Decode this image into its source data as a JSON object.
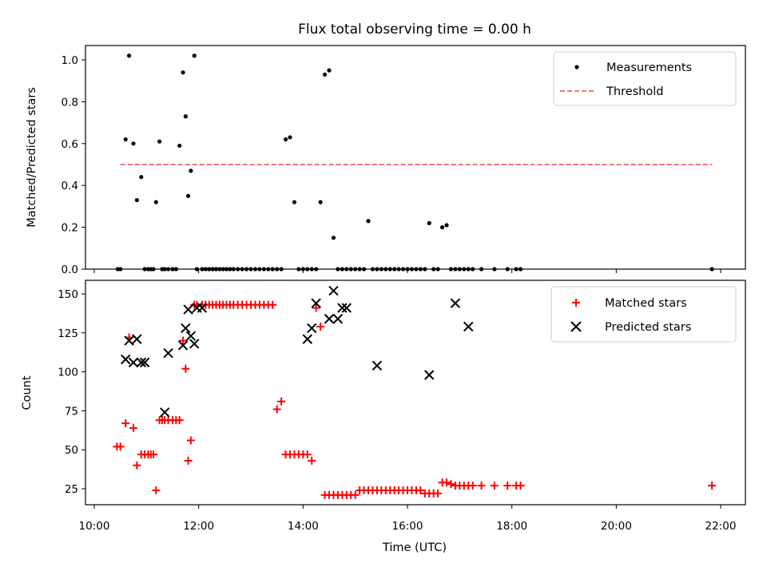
{
  "chart_data": [
    {
      "type": "scatter",
      "title": "Flux total observing time = 0.00 h",
      "xlabel": "",
      "ylabel": "Matched/Predicted stars",
      "xlim": [
        "10:00",
        "22:00"
      ],
      "ylim": [
        0,
        1.08
      ],
      "yticks": [
        "0.0",
        "0.2",
        "0.4",
        "0.6",
        "0.8",
        "1.0"
      ],
      "legend_position": "top-right",
      "grid": false,
      "series": [
        {
          "name": "Measurements",
          "marker": "dot",
          "color": "#000000",
          "x": [
            "10:27",
            "10:30",
            "10:36",
            "10:40",
            "10:45",
            "10:49",
            "10:54",
            "10:58",
            "11:02",
            "11:05",
            "11:08",
            "11:11",
            "11:15",
            "11:18",
            "11:21",
            "11:25",
            "11:30",
            "11:34",
            "11:38",
            "11:42",
            "11:45",
            "11:48",
            "11:51",
            "11:55",
            "11:58",
            "12:04",
            "12:08",
            "12:12",
            "12:16",
            "12:20",
            "12:24",
            "12:28",
            "12:32",
            "12:36",
            "12:40",
            "12:45",
            "12:50",
            "12:55",
            "13:00",
            "13:05",
            "13:10",
            "13:15",
            "13:20",
            "13:25",
            "13:30",
            "13:35",
            "13:40",
            "13:45",
            "13:50",
            "13:55",
            "14:00",
            "14:05",
            "14:10",
            "14:15",
            "14:20",
            "14:25",
            "14:30",
            "14:35",
            "14:40",
            "14:45",
            "14:50",
            "14:55",
            "15:00",
            "15:05",
            "15:10",
            "15:15",
            "15:20",
            "15:25",
            "15:30",
            "15:35",
            "15:40",
            "15:45",
            "15:50",
            "15:55",
            "16:00",
            "16:05",
            "16:10",
            "16:15",
            "16:20",
            "16:25",
            "16:30",
            "16:35",
            "16:40",
            "16:45",
            "16:50",
            "16:55",
            "17:00",
            "17:05",
            "17:10",
            "17:15",
            "17:25",
            "17:40",
            "17:55",
            "18:05",
            "18:10",
            "21:50"
          ],
          "y": [
            0,
            0,
            0.62,
            1.02,
            0.6,
            0.33,
            0.44,
            0,
            0,
            0,
            0,
            0.32,
            0.61,
            0,
            0,
            0,
            0,
            0,
            0.59,
            0.94,
            0.73,
            0.35,
            0.47,
            1.02,
            0,
            0,
            0,
            0,
            0,
            0,
            0,
            0,
            0,
            0,
            0,
            0,
            0,
            0,
            0,
            0,
            0,
            0,
            0,
            0,
            0,
            0,
            0.62,
            0.63,
            0.32,
            0,
            0,
            0,
            0,
            0,
            0.32,
            0.93,
            0.95,
            0.15,
            0,
            0,
            0,
            0,
            0,
            0,
            0,
            0.23,
            0,
            0,
            0,
            0,
            0,
            0,
            0,
            0,
            0,
            0,
            0,
            0,
            0,
            0.22,
            0,
            0,
            0.2,
            0.21,
            0,
            0,
            0,
            0,
            0,
            0,
            0,
            0,
            0,
            0,
            0,
            0
          ]
        },
        {
          "name": "Threshold",
          "marker": "dashed-line",
          "color": "#ff7070",
          "x": [
            "10:30",
            "21:50"
          ],
          "y": [
            0.5,
            0.5
          ]
        }
      ]
    },
    {
      "type": "scatter",
      "title": "",
      "xlabel": "Time (UTC)",
      "ylabel": "Count",
      "xlim": [
        "10:00",
        "22:00"
      ],
      "ylim": [
        14,
        160
      ],
      "xticks": [
        "10:00",
        "12:00",
        "14:00",
        "16:00",
        "18:00",
        "20:00",
        "22:00"
      ],
      "yticks": [
        "25",
        "50",
        "75",
        "100",
        "125",
        "150"
      ],
      "legend_position": "top-right",
      "grid": false,
      "series": [
        {
          "name": "Matched stars",
          "marker": "plus",
          "color": "#ff0000",
          "x": [
            "10:26",
            "10:30",
            "10:36",
            "10:40",
            "10:45",
            "10:49",
            "10:54",
            "10:58",
            "11:02",
            "11:05",
            "11:08",
            "11:11",
            "11:15",
            "11:18",
            "11:21",
            "11:25",
            "11:30",
            "11:34",
            "11:38",
            "11:42",
            "11:45",
            "11:48",
            "11:51",
            "11:55",
            "11:58",
            "12:04",
            "12:08",
            "12:12",
            "12:16",
            "12:20",
            "12:24",
            "12:28",
            "12:32",
            "12:36",
            "12:40",
            "12:45",
            "12:50",
            "12:55",
            "13:00",
            "13:05",
            "13:10",
            "13:15",
            "13:20",
            "13:25",
            "13:30",
            "13:35",
            "13:40",
            "13:45",
            "13:50",
            "13:55",
            "14:00",
            "14:05",
            "14:10",
            "14:15",
            "14:20",
            "14:25",
            "14:30",
            "14:35",
            "14:40",
            "14:45",
            "14:50",
            "14:55",
            "15:00",
            "15:05",
            "15:10",
            "15:15",
            "15:20",
            "15:25",
            "15:30",
            "15:35",
            "15:40",
            "15:45",
            "15:50",
            "15:55",
            "16:00",
            "16:05",
            "16:10",
            "16:15",
            "16:20",
            "16:25",
            "16:30",
            "16:35",
            "16:40",
            "16:45",
            "16:50",
            "16:55",
            "17:00",
            "17:05",
            "17:10",
            "17:15",
            "17:25",
            "17:40",
            "17:55",
            "18:05",
            "18:10",
            "21:50"
          ],
          "y": [
            52,
            52,
            67,
            122,
            64,
            40,
            47,
            47,
            47,
            47,
            47,
            24,
            69,
            69,
            69,
            69,
            69,
            69,
            69,
            120,
            102,
            43,
            56,
            143,
            143,
            143,
            143,
            143,
            143,
            143,
            143,
            143,
            143,
            143,
            143,
            143,
            143,
            143,
            143,
            143,
            143,
            143,
            143,
            143,
            76,
            81,
            47,
            47,
            47,
            47,
            47,
            47,
            43,
            141,
            129,
            21,
            21,
            21,
            21,
            21,
            21,
            21,
            21,
            24,
            24,
            24,
            24,
            24,
            24,
            24,
            24,
            24,
            24,
            24,
            24,
            24,
            24,
            24,
            22,
            22,
            22,
            22,
            29,
            29,
            28,
            27,
            27,
            27,
            27,
            27,
            27,
            27,
            27,
            27,
            27,
            27
          ]
        },
        {
          "name": "Predicted stars",
          "marker": "x",
          "color": "#000000",
          "x": [
            "10:36",
            "10:40",
            "10:45",
            "10:49",
            "10:54",
            "10:58",
            "11:21",
            "11:25",
            "11:42",
            "11:45",
            "11:48",
            "11:51",
            "11:55",
            "11:58",
            "12:04",
            "14:05",
            "14:10",
            "14:15",
            "14:30",
            "14:35",
            "14:40",
            "14:45",
            "14:50",
            "15:25",
            "16:25",
            "16:55",
            "17:10"
          ],
          "y": [
            108,
            120,
            106,
            121,
            106,
            106,
            74,
            112,
            117,
            128,
            140,
            123,
            118,
            141,
            141,
            121,
            128,
            144,
            134,
            152,
            134,
            141,
            141,
            104,
            98,
            144,
            129
          ]
        }
      ]
    }
  ]
}
